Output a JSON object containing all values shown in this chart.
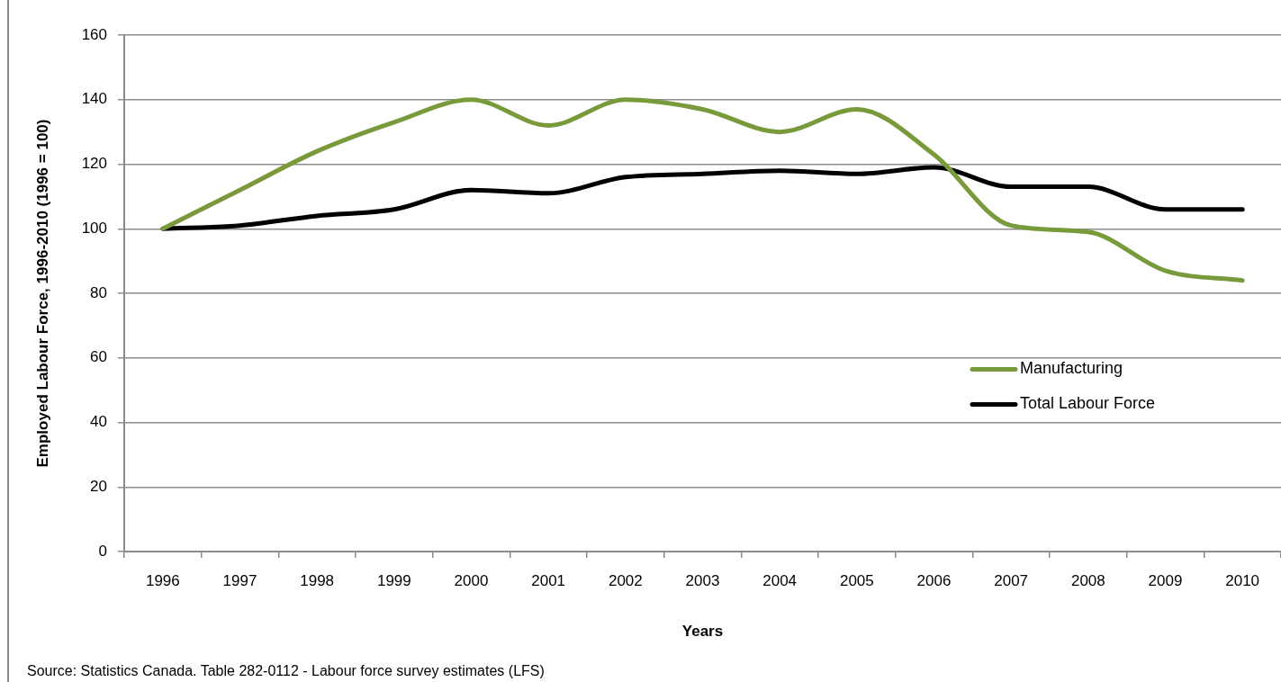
{
  "chart_data": {
    "type": "line",
    "xlabel": "Years",
    "ylabel": "Employed Labour Force, 1996-2010 (1996 = 100)",
    "categories": [
      "1996",
      "1997",
      "1998",
      "1999",
      "2000",
      "2001",
      "2002",
      "2003",
      "2004",
      "2005",
      "2006",
      "2007",
      "2008",
      "2009",
      "2010"
    ],
    "series": [
      {
        "name": "Manufacturing",
        "color": "#789a3b",
        "values": [
          100,
          112,
          124,
          133,
          140,
          132,
          140,
          137,
          130,
          137,
          123,
          101,
          99,
          87,
          84
        ]
      },
      {
        "name": "Total Labour Force",
        "color": "#000000",
        "values": [
          100,
          101,
          104,
          106,
          112,
          111,
          116,
          117,
          118,
          117,
          119,
          113,
          113,
          106,
          106
        ]
      }
    ],
    "ylim": [
      0,
      160
    ],
    "yticks": [
      0,
      20,
      40,
      60,
      80,
      100,
      120,
      140,
      160
    ],
    "grid": "y",
    "legend": "right",
    "marker": "none",
    "annotations": [
      "Source: Statistics Canada. Table 282-0112 - Labour force survey estimates (LFS)"
    ]
  }
}
